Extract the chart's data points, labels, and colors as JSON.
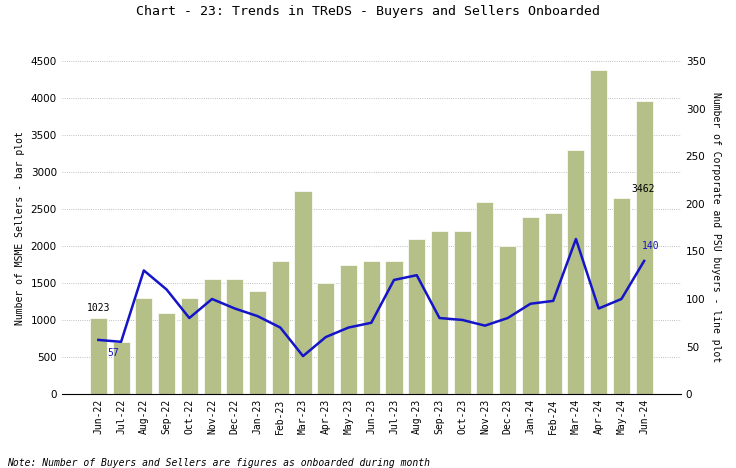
{
  "title": "Chart - 23: Trends in TReDS - Buyers and Sellers Onboarded",
  "categories": [
    "Jun-22",
    "Jul-22",
    "Aug-22",
    "Sep-22",
    "Oct-22",
    "Nov-22",
    "Dec-22",
    "Jan-23",
    "Feb-23",
    "Mar-23",
    "Apr-23",
    "May-23",
    "Jun-23",
    "Jul-23",
    "Aug-23",
    "Sep-23",
    "Oct-23",
    "Nov-23",
    "Dec-23",
    "Jan-24",
    "Feb-24",
    "Mar-24",
    "Apr-24",
    "May-24",
    "Jun-24"
  ],
  "bar_values": [
    1023,
    700,
    1300,
    1100,
    1300,
    1550,
    1550,
    1400,
    1800,
    2750,
    1500,
    1750,
    1800,
    1800,
    2100,
    2200,
    2200,
    2600,
    2000,
    2400,
    2450,
    3300,
    4380,
    2650,
    3960
  ],
  "line_values": [
    57,
    55,
    130,
    110,
    80,
    100,
    90,
    82,
    70,
    40,
    60,
    70,
    75,
    120,
    125,
    80,
    78,
    72,
    80,
    95,
    98,
    163,
    90,
    100,
    140
  ],
  "bar_color": "#b5bf88",
  "line_color": "#1414c8",
  "ylabel_left": "Number of MSME Sellers - bar plot",
  "ylabel_right": "Number of Corporate and PSU buyers - line plot",
  "ylim_left": [
    0,
    4500
  ],
  "ylim_right": [
    0,
    350
  ],
  "yticks_left": [
    0,
    500,
    1000,
    1500,
    2000,
    2500,
    3000,
    3500,
    4000,
    4500
  ],
  "yticks_right": [
    0,
    50,
    100,
    150,
    200,
    250,
    300,
    350
  ],
  "note": "Note: Number of Buyers and Sellers are figures as onboarded during month",
  "background_color": "#ffffff",
  "grid_color": "#aaaaaa"
}
